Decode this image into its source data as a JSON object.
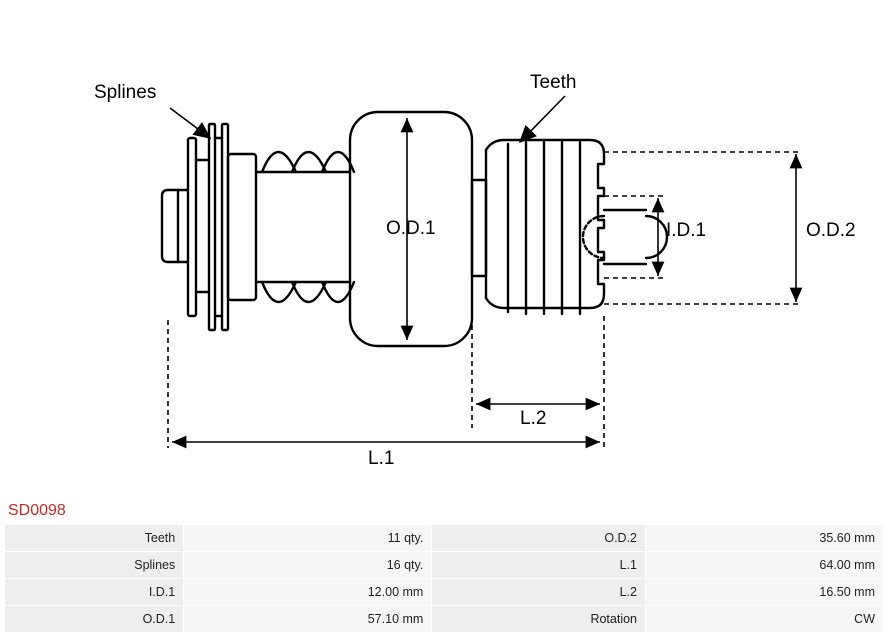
{
  "part_number": "SD0098",
  "labels": {
    "splines": "Splines",
    "teeth": "Teeth",
    "od1": "O.D.1",
    "od2": "O.D.2",
    "id1": "I.D.1",
    "l1": "L.1",
    "l2": "L.2"
  },
  "spec_rows": [
    {
      "k1": "Teeth",
      "v1": "11 qty.",
      "k2": "O.D.2",
      "v2": "35.60 mm"
    },
    {
      "k1": "Splines",
      "v1": "16 qty.",
      "k2": "L.1",
      "v2": "64.00 mm"
    },
    {
      "k1": "I.D.1",
      "v1": "12.00 mm",
      "k2": "L.2",
      "v2": "16.50 mm"
    },
    {
      "k1": "O.D.1",
      "v1": "57.10 mm",
      "k2": "Rotation",
      "v2": "CW"
    }
  ],
  "diagram": {
    "stroke": "#000000",
    "stroke_w_main": 2.4,
    "stroke_w_thin": 1.6,
    "dash": "5,4",
    "arrow_size": 8,
    "font": "19px Arial"
  }
}
